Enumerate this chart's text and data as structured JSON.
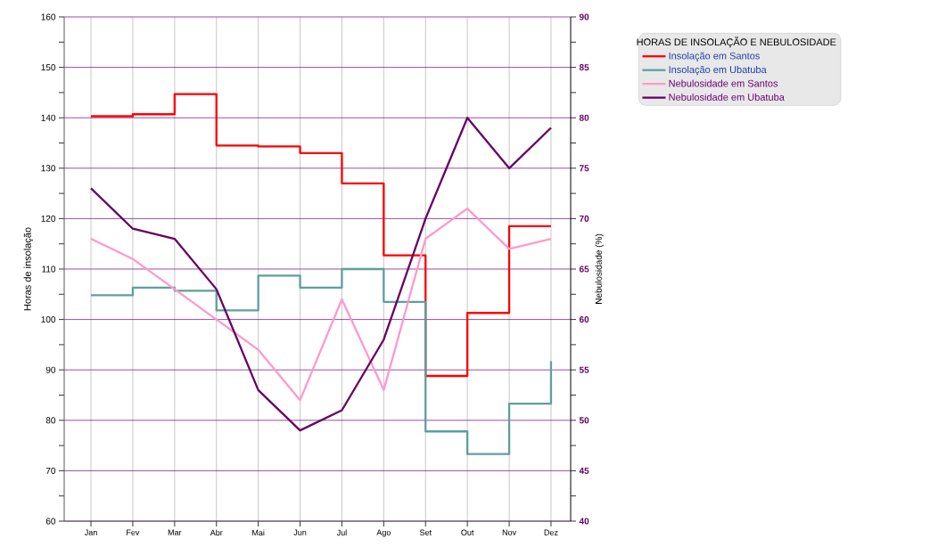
{
  "chart_data": {
    "type": "line",
    "categories": [
      "Jan",
      "Fev",
      "Mar",
      "Abr",
      "Mai",
      "Jun",
      "Jul",
      "Ago",
      "Set",
      "Out",
      "Nov",
      "Dez"
    ],
    "ylabel": "Horas de insolação",
    "y2label": "Nebulosidade (%)",
    "legend_title": "HORAS DE INSOLAÇÃO E NEBULOSIDADE",
    "ylim": [
      60,
      160
    ],
    "yticks": [
      60,
      {
        "value": 65,
        "label": null
      },
      70,
      {
        "value": 75,
        "label": null
      },
      80,
      {
        "value": 85,
        "label": null
      },
      90,
      {
        "value": 95,
        "label": null
      },
      100,
      {
        "value": 105,
        "label": null
      },
      110,
      {
        "value": 115,
        "label": null
      },
      120,
      {
        "value": 125,
        "label": null
      },
      130,
      {
        "value": 135,
        "label": null
      },
      140,
      {
        "value": 145,
        "label": null
      },
      150,
      {
        "value": 155,
        "label": null
      },
      160
    ],
    "y2lim": [
      40,
      90
    ],
    "y2ticks": [
      40,
      {
        "value": 42.5,
        "label": null
      },
      45,
      {
        "value": 47.5,
        "label": null
      },
      50,
      {
        "value": 52.5,
        "label": null
      },
      55,
      {
        "value": 57.5,
        "label": null
      },
      60,
      {
        "value": 62.5,
        "label": null
      },
      65,
      {
        "value": 67.5,
        "label": null
      },
      70,
      {
        "value": 72.5,
        "label": null
      },
      75,
      {
        "value": 77.5,
        "label": null
      },
      80,
      {
        "value": 82.5,
        "label": null
      },
      85,
      {
        "value": 87.5,
        "label": null
      },
      90
    ],
    "grid": true,
    "legend": "top right",
    "series": [
      {
        "name": "Insolação em Santos",
        "type": "step",
        "color": "#ff0000",
        "values": [
          140.3,
          140.7,
          144.7,
          134.5,
          134.3,
          133,
          127,
          112.7,
          88.8,
          101.3,
          118.5,
          118.5
        ]
      },
      {
        "name": "Insolação em Ubatuba",
        "type": "step",
        "color": "#5f9ea0",
        "values": [
          104.8,
          106.3,
          105.7,
          101.8,
          108.7,
          106.3,
          110,
          103.5,
          77.8,
          73.3,
          83.3,
          91.7
        ]
      },
      {
        "name": "Nebulosidade em Santos",
        "type": "line",
        "axis": "y2",
        "color": "#ff99cc",
        "values": [
          68,
          66,
          63,
          60,
          57,
          52,
          62,
          53,
          68,
          71,
          67,
          68
        ]
      },
      {
        "name": "Nebulosidade em Ubatuba",
        "type": "line",
        "axis": "y2",
        "color": "#660066",
        "values": [
          73,
          69,
          68,
          63,
          53,
          49,
          51,
          58,
          70,
          80,
          75,
          79
        ]
      }
    ]
  }
}
